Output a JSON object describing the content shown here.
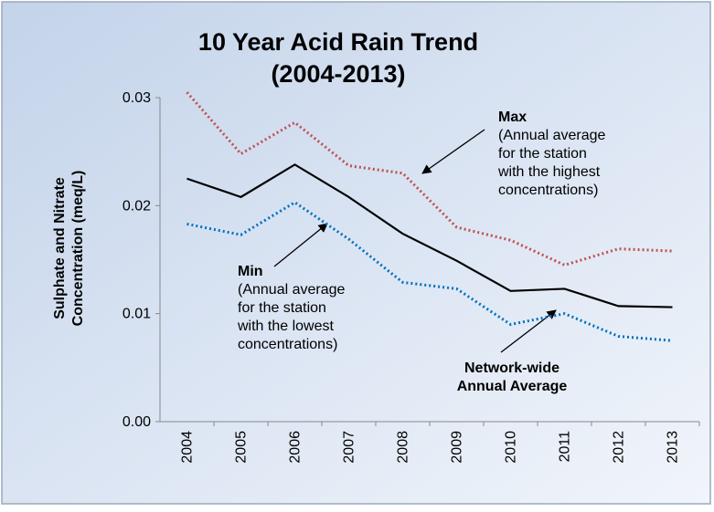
{
  "chart_data": {
    "type": "line",
    "title": [
      "10 Year Acid Rain Trend",
      "(2004-2013)"
    ],
    "ylabel": [
      "Sulphate and Nitrate",
      "Concentration (meq/L)"
    ],
    "categories": [
      "2004",
      "2005",
      "2006",
      "2007",
      "2008",
      "2009",
      "2010",
      "2011",
      "2012",
      "2013"
    ],
    "series": [
      {
        "color": "#c0504d",
        "dash": "dotted",
        "values": [
          0.0305,
          0.0248,
          0.0277,
          0.0237,
          0.023,
          0.018,
          0.0168,
          0.0145,
          0.016,
          0.0158
        ]
      },
      {
        "color": "#000000",
        "dash": "solid",
        "values": [
          0.0225,
          0.0208,
          0.0238,
          0.0208,
          0.0174,
          0.0149,
          0.0121,
          0.0123,
          0.0107,
          0.0106
        ]
      },
      {
        "color": "#0070c0",
        "dash": "dotted",
        "values": [
          0.0183,
          0.0173,
          0.0203,
          0.0169,
          0.0129,
          0.0123,
          0.009,
          0.01,
          0.0079,
          0.0075
        ]
      }
    ],
    "annotations": [
      {
        "label": [
          "Max"
        ],
        "note": [
          "(Annual average",
          "for the station",
          "with the highest",
          "concentrations)"
        ]
      },
      {
        "label": [
          "Min"
        ],
        "note": [
          "(Annual average",
          "for the station",
          "with the lowest",
          "concentrations)"
        ]
      },
      {
        "label": [
          "Network-wide",
          "Annual Average"
        ],
        "note": []
      }
    ],
    "ylim": [
      0,
      0.03
    ],
    "yticks": [
      {
        "value": 0,
        "label": "0.00"
      },
      0.01,
      0.02,
      0.03
    ]
  }
}
